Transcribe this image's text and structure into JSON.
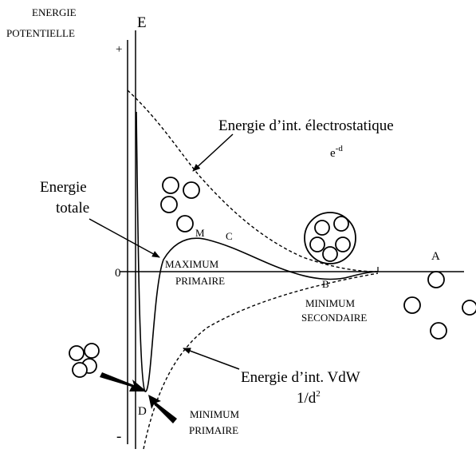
{
  "axis": {
    "y_title": [
      "ENERGIE",
      "POTENTIELLE"
    ],
    "y_symbol": "E",
    "plus": "+",
    "minus": "-",
    "zero": "0"
  },
  "labels": {
    "electrostatic": {
      "text": "Energie d’int. électrostatique",
      "formula_base": "e",
      "formula_exponent": "-d"
    },
    "total": [
      "Energie",
      "totale"
    ],
    "vdw": {
      "text": "Energie d’int. VdW",
      "formula_base": "1/d",
      "formula_exponent": "2"
    },
    "point_m": "M",
    "point_c": "C",
    "point_b": "B",
    "point_a": "A",
    "point_d": "D",
    "maximum_primaire": [
      "MAXIMUM",
      "PRIMAIRE"
    ],
    "minimum_secondaire": [
      "MINIMUM",
      "SECONDAIRE"
    ],
    "minimum_primaire": [
      "MINIMUM",
      "PRIMAIRE"
    ]
  }
}
